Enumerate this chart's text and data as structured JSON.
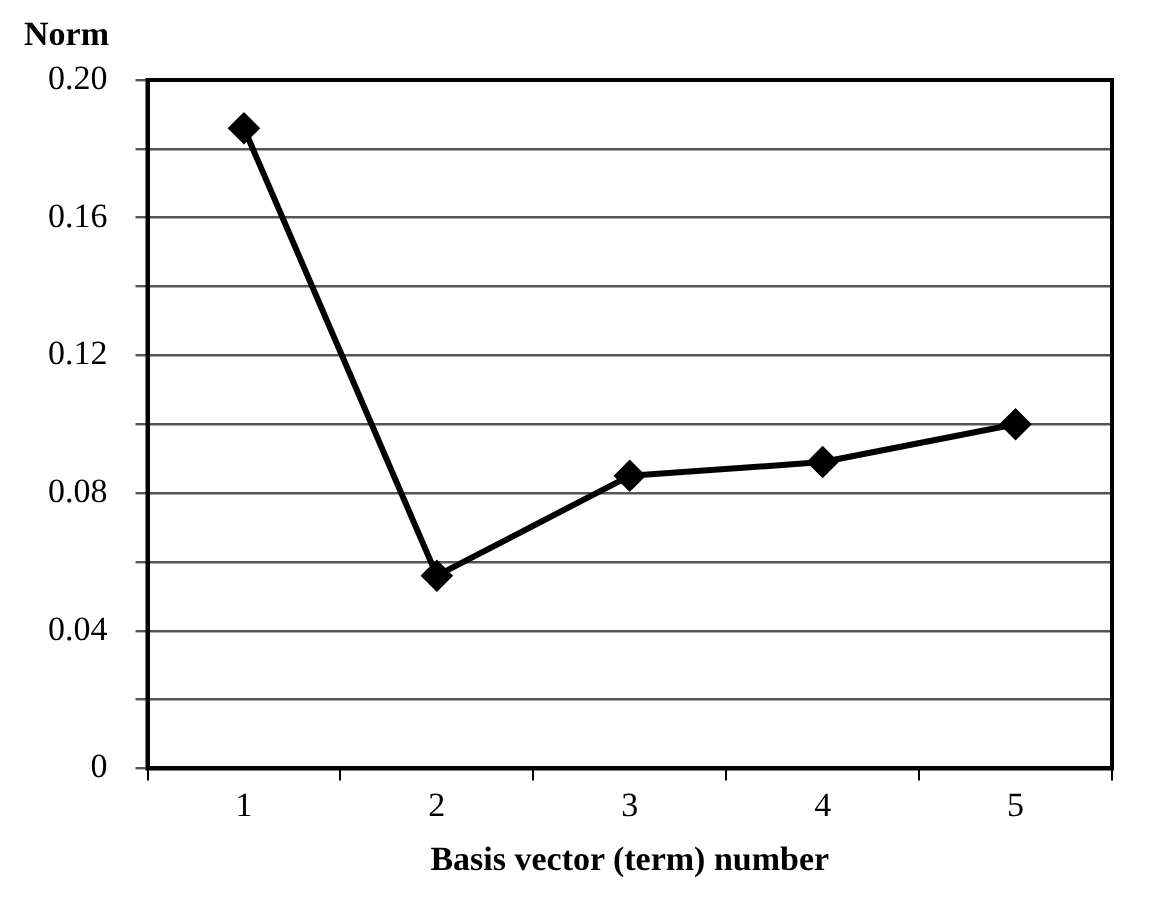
{
  "chart_data": {
    "type": "line",
    "ylabel": "Norm",
    "xlabel": "Basis vector (term) number",
    "categories": [
      "1",
      "2",
      "3",
      "4",
      "5"
    ],
    "series": [
      {
        "color": "#000000",
        "values": [
          0.186,
          0.056,
          0.085,
          0.089,
          0.1
        ]
      }
    ],
    "ylim": [
      0,
      0.2
    ],
    "yticks": [
      0,
      {
        "value": 0.02,
        "label": null
      },
      0.04,
      {
        "value": 0.06,
        "label": null
      },
      0.08,
      {
        "value": 0.1,
        "label": null
      },
      0.12,
      {
        "value": 0.14,
        "label": null
      },
      0.16,
      {
        "value": 0.18,
        "label": null
      },
      {
        "value": 0.2,
        "label": "0.20"
      }
    ],
    "grid": "y",
    "marker": "diamond",
    "line_style": "solid",
    "legend": false
  }
}
